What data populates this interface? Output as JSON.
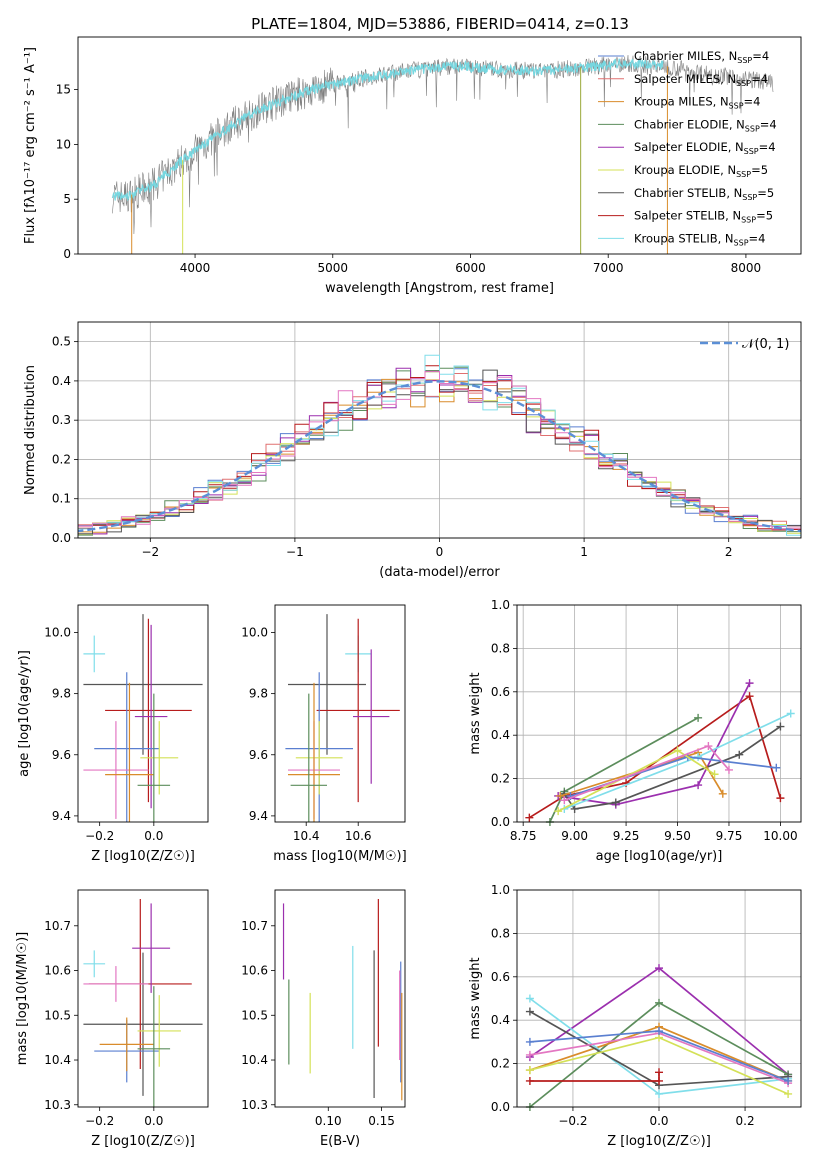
{
  "figure": {
    "title": "PLATE=1804, MJD=53886, FIBERID=0414, z=0.13",
    "colors": {
      "obs": "#808080",
      "grid": "#b0b0b0",
      "normal": "#5b8fd6"
    }
  },
  "chart_data": [
    {
      "id": "spectrum",
      "type": "line",
      "title": "PLATE=1804, MJD=53886, FIBERID=0414, z=0.13",
      "xlabel": "wavelength [Angstrom, rest frame]",
      "ylabel": "Flux [fλ10⁻¹⁷ erg cm⁻² s⁻¹ A⁻¹]",
      "xlim": [
        3150,
        8400
      ],
      "ylim": [
        0,
        19.8
      ],
      "xticks": [
        4000,
        5000,
        6000,
        7000,
        8000
      ],
      "yticks": [
        0,
        5,
        10,
        15
      ],
      "continuum": {
        "x": [
          3400,
          3500,
          3700,
          3900,
          4100,
          4300,
          4500,
          4800,
          5000,
          5300,
          5600,
          5900,
          6200,
          6500,
          6800,
          7100,
          7400,
          7700,
          8000,
          8200
        ],
        "y": [
          5.3,
          5.2,
          6.3,
          8.5,
          10.3,
          12.0,
          13.4,
          14.8,
          15.5,
          16.2,
          16.8,
          17.2,
          16.8,
          16.7,
          17.0,
          17.4,
          17.2,
          16.5,
          16.0,
          15.6
        ]
      },
      "model_color": "#76d7e0",
      "legend": [
        {
          "label": "Chabrier MILES, N",
          "sub": "SSP",
          "suffix": "=4",
          "color": "#5a7fd0"
        },
        {
          "label": "Salpeter MILES, N",
          "sub": "SSP",
          "suffix": "=4",
          "color": "#e07070"
        },
        {
          "label": "Kroupa MILES, N",
          "sub": "SSP",
          "suffix": "=4",
          "color": "#d98c2b"
        },
        {
          "label": "Chabrier ELODIE, N",
          "sub": "SSP",
          "suffix": "=4",
          "color": "#5c8d5c"
        },
        {
          "label": "Salpeter ELODIE, N",
          "sub": "SSP",
          "suffix": "=4",
          "color": "#9b2fae"
        },
        {
          "label": "Kroupa ELODIE, N",
          "sub": "SSP",
          "suffix": "=5",
          "color": "#d4e157"
        },
        {
          "label": "Chabrier STELIB, N",
          "sub": "SSP",
          "suffix": "=5",
          "color": "#555555"
        },
        {
          "label": "Salpeter STELIB, N",
          "sub": "SSP",
          "suffix": "=5",
          "color": "#b71c1c"
        },
        {
          "label": "Kroupa STELIB, N",
          "sub": "SSP",
          "suffix": "=4",
          "color": "#80deea"
        }
      ]
    },
    {
      "id": "residuals",
      "type": "line",
      "xlabel": "(data-model)/error",
      "ylabel": "Normed distribution",
      "xlim": [
        -2.5,
        2.5
      ],
      "ylim": [
        0,
        0.55
      ],
      "xticks": [
        -2,
        -1,
        0,
        1,
        2
      ],
      "yticks": [
        0.0,
        0.1,
        0.2,
        0.3,
        0.4,
        0.5
      ],
      "legend": "𝒩(0, 1)",
      "bin_width": 0.1,
      "series_colors": [
        "#5a7fd0",
        "#e07070",
        "#d98c2b",
        "#5c8d5c",
        "#9b2fae",
        "#d4e157",
        "#555555",
        "#b71c1c",
        "#80deea",
        "#e377c2"
      ]
    },
    {
      "id": "z-age",
      "type": "scatter",
      "xlabel": "Z [log10(Z/Z☉)]",
      "ylabel": "age  [log10(age/yr)]",
      "xlim": [
        -0.28,
        0.2
      ],
      "ylim": [
        9.38,
        10.09
      ],
      "xticks": [
        -0.2,
        0.0
      ],
      "yticks": [
        9.4,
        9.6,
        9.8,
        10.0
      ],
      "points": [
        {
          "x": -0.22,
          "xerr": 0.04,
          "y": 9.93,
          "yerr": 0.06,
          "color": "#80deea"
        },
        {
          "x": -0.04,
          "xerr": 0.22,
          "y": 9.83,
          "yerr": 0.23,
          "color": "#555555"
        },
        {
          "x": -0.02,
          "xerr": 0.16,
          "y": 9.745,
          "yerr": 0.3,
          "color": "#b71c1c"
        },
        {
          "x": -0.01,
          "xerr": 0.06,
          "y": 9.725,
          "yerr": 0.3,
          "color": "#9b2fae"
        },
        {
          "x": -0.1,
          "xerr": 0.12,
          "y": 9.62,
          "yerr": 0.25,
          "color": "#5a7fd0"
        },
        {
          "x": 0.02,
          "xerr": 0.07,
          "y": 9.59,
          "yerr": 0.12,
          "color": "#d4e157"
        },
        {
          "x": -0.14,
          "xerr": 0.12,
          "y": 9.55,
          "yerr": 0.16,
          "color": "#e377c2"
        },
        {
          "x": -0.09,
          "xerr": 0.09,
          "y": 9.535,
          "yerr": 0.3,
          "color": "#d98c2b"
        },
        {
          "x": 0.0,
          "xerr": 0.06,
          "y": 9.5,
          "yerr": 0.3,
          "color": "#5c8d5c"
        }
      ]
    },
    {
      "id": "mass-age",
      "type": "scatter",
      "xlabel": "mass [log10(M/M☉)]",
      "ylabel": "",
      "xlim": [
        10.28,
        10.78
      ],
      "ylim": [
        9.38,
        10.09
      ],
      "xticks": [
        10.4,
        10.6
      ],
      "yticks": [
        9.4,
        9.6,
        9.8,
        10.0
      ],
      "points": [
        {
          "x": 10.6,
          "xerr": 0.05,
          "y": 9.93,
          "yerr": 0.06,
          "color": "#80deea"
        },
        {
          "x": 10.48,
          "xerr": 0.15,
          "y": 9.83,
          "yerr": 0.23,
          "color": "#555555"
        },
        {
          "x": 10.6,
          "xerr": 0.16,
          "y": 9.745,
          "yerr": 0.3,
          "color": "#b71c1c"
        },
        {
          "x": 10.65,
          "xerr": 0.07,
          "y": 9.725,
          "yerr": 0.22,
          "color": "#9b2fae"
        },
        {
          "x": 10.45,
          "xerr": 0.13,
          "y": 9.62,
          "yerr": 0.25,
          "color": "#5a7fd0"
        },
        {
          "x": 10.45,
          "xerr": 0.09,
          "y": 9.59,
          "yerr": 0.12,
          "color": "#d4e157"
        },
        {
          "x": 10.43,
          "xerr": 0.1,
          "y": 9.55,
          "yerr": 0.16,
          "color": "#e377c2"
        },
        {
          "x": 10.43,
          "xerr": 0.1,
          "y": 9.535,
          "yerr": 0.3,
          "color": "#d98c2b"
        },
        {
          "x": 10.41,
          "xerr": 0.07,
          "y": 9.5,
          "yerr": 0.3,
          "color": "#5c8d5c"
        }
      ]
    },
    {
      "id": "age-weight",
      "type": "line",
      "xlabel": "age  [log10(age/yr)]",
      "ylabel": "mass weight",
      "xlim": [
        8.72,
        10.1
      ],
      "ylim": [
        0,
        1.0
      ],
      "xticks": [
        8.75,
        9.0,
        9.25,
        9.5,
        9.75,
        10.0
      ],
      "yticks": [
        0.0,
        0.2,
        0.4,
        0.6,
        0.8,
        1.0
      ],
      "series": [
        {
          "color": "#b71c1c",
          "x": [
            8.78,
            8.95,
            9.25,
            9.85,
            10.0
          ],
          "y": [
            0.02,
            0.12,
            0.18,
            0.58,
            0.11
          ]
        },
        {
          "color": "#9b2fae",
          "x": [
            8.92,
            9.2,
            9.6,
            9.85
          ],
          "y": [
            0.12,
            0.08,
            0.17,
            0.64
          ]
        },
        {
          "color": "#5c8d5c",
          "x": [
            8.88,
            8.95,
            9.6
          ],
          "y": [
            0.0,
            0.14,
            0.48
          ]
        },
        {
          "color": "#555555",
          "x": [
            8.95,
            9.0,
            9.2,
            9.8,
            10.0
          ],
          "y": [
            0.13,
            0.06,
            0.09,
            0.31,
            0.44
          ]
        },
        {
          "color": "#d98c2b",
          "x": [
            8.93,
            9.6,
            9.72
          ],
          "y": [
            0.12,
            0.32,
            0.13
          ]
        },
        {
          "color": "#80deea",
          "x": [
            8.95,
            9.6,
            10.05
          ],
          "y": [
            0.06,
            0.3,
            0.5
          ]
        },
        {
          "color": "#5a7fd0",
          "x": [
            8.98,
            9.55,
            9.98
          ],
          "y": [
            0.12,
            0.3,
            0.25
          ]
        },
        {
          "color": "#d4e157",
          "x": [
            8.92,
            9.5,
            9.68
          ],
          "y": [
            0.05,
            0.33,
            0.22
          ]
        },
        {
          "color": "#e377c2",
          "x": [
            8.95,
            9.65,
            9.75
          ],
          "y": [
            0.1,
            0.35,
            0.24
          ]
        }
      ]
    },
    {
      "id": "z-mass",
      "type": "scatter",
      "xlabel": "Z [log10(Z/Z☉)]",
      "ylabel": "mass [log10(M/M☉)]",
      "xlim": [
        -0.28,
        0.2
      ],
      "ylim": [
        10.295,
        10.78
      ],
      "xticks": [
        -0.2,
        0.0
      ],
      "yticks": [
        10.3,
        10.4,
        10.5,
        10.6,
        10.7
      ],
      "points": [
        {
          "x": -0.22,
          "xerr": 0.04,
          "y": 10.615,
          "yerr": 0.03,
          "color": "#80deea"
        },
        {
          "x": -0.04,
          "xerr": 0.22,
          "y": 10.48,
          "yerr": 0.16,
          "color": "#555555"
        },
        {
          "x": -0.05,
          "xerr": 0.19,
          "y": 10.57,
          "yerr": 0.19,
          "color": "#b71c1c"
        },
        {
          "x": -0.01,
          "xerr": 0.07,
          "y": 10.65,
          "yerr": 0.1,
          "color": "#9b2fae"
        },
        {
          "x": -0.1,
          "xerr": 0.12,
          "y": 10.42,
          "yerr": 0.07,
          "color": "#5a7fd0"
        },
        {
          "x": 0.02,
          "xerr": 0.08,
          "y": 10.465,
          "yerr": 0.08,
          "color": "#d4e157"
        },
        {
          "x": -0.14,
          "xerr": 0.12,
          "y": 10.57,
          "yerr": 0.04,
          "color": "#e377c2"
        },
        {
          "x": -0.1,
          "xerr": 0.1,
          "y": 10.435,
          "yerr": 0.06,
          "color": "#d98c2b"
        },
        {
          "x": 0.0,
          "xerr": 0.06,
          "y": 10.425,
          "yerr": 0.14,
          "color": "#5c8d5c"
        }
      ]
    },
    {
      "id": "ebv-mass",
      "type": "scatter",
      "xlabel": "E(B-V)",
      "ylabel": "",
      "xlim": [
        0.05,
        0.172
      ],
      "ylim": [
        10.295,
        10.78
      ],
      "xticks": [
        0.1,
        0.15
      ],
      "yticks": [
        10.3,
        10.4,
        10.5,
        10.6,
        10.7
      ],
      "points": [
        {
          "x": 0.058,
          "y": 10.665,
          "yerr": 0.085,
          "color": "#9b2fae"
        },
        {
          "x": 0.063,
          "y": 10.485,
          "yerr": 0.095,
          "color": "#5c8d5c"
        },
        {
          "x": 0.083,
          "y": 10.46,
          "yerr": 0.09,
          "color": "#d4e157"
        },
        {
          "x": 0.123,
          "y": 10.54,
          "yerr": 0.115,
          "color": "#80deea"
        },
        {
          "x": 0.143,
          "y": 10.48,
          "yerr": 0.165,
          "color": "#555555"
        },
        {
          "x": 0.147,
          "y": 10.595,
          "yerr": 0.165,
          "color": "#b71c1c"
        },
        {
          "x": 0.168,
          "y": 10.485,
          "yerr": 0.135,
          "color": "#5a7fd0"
        },
        {
          "x": 0.167,
          "y": 10.5,
          "yerr": 0.1,
          "color": "#e377c2"
        },
        {
          "x": 0.169,
          "y": 10.43,
          "yerr": 0.12,
          "color": "#d98c2b"
        }
      ]
    },
    {
      "id": "z-weight",
      "type": "line",
      "xlabel": "Z [log10(Z/Z☉)]",
      "ylabel": "mass weight",
      "xlim": [
        -0.33,
        0.33
      ],
      "ylim": [
        0,
        1.0
      ],
      "xticks": [
        -0.2,
        0.0,
        0.2
      ],
      "yticks": [
        0.0,
        0.2,
        0.4,
        0.6,
        0.8,
        1.0
      ],
      "series": [
        {
          "color": "#9b2fae",
          "x": [
            -0.3,
            0.0,
            0.3
          ],
          "y": [
            0.23,
            0.64,
            0.15
          ]
        },
        {
          "color": "#5c8d5c",
          "x": [
            -0.3,
            0.0,
            0.3
          ],
          "y": [
            0.0,
            0.48,
            0.15
          ]
        },
        {
          "color": "#d98c2b",
          "x": [
            -0.3,
            0.0,
            0.3
          ],
          "y": [
            0.17,
            0.37,
            0.12
          ]
        },
        {
          "color": "#80deea",
          "x": [
            -0.3,
            0.0,
            0.3
          ],
          "y": [
            0.5,
            0.06,
            0.13
          ]
        },
        {
          "color": "#555555",
          "x": [
            -0.3,
            0.0,
            0.3
          ],
          "y": [
            0.44,
            0.1,
            0.14
          ]
        },
        {
          "color": "#e377c2",
          "x": [
            -0.3,
            0.0,
            0.3
          ],
          "y": [
            0.24,
            0.34,
            0.11
          ]
        },
        {
          "color": "#d4e157",
          "x": [
            -0.3,
            0.0,
            0.3
          ],
          "y": [
            0.17,
            0.32,
            0.06
          ]
        },
        {
          "color": "#5a7fd0",
          "x": [
            -0.3,
            0.0,
            0.3
          ],
          "y": [
            0.3,
            0.35,
            0.12
          ]
        },
        {
          "color": "#b71c1c",
          "x": [
            -0.3,
            0.0,
            0.0
          ],
          "y": [
            0.12,
            0.12,
            0.16
          ]
        }
      ]
    }
  ]
}
